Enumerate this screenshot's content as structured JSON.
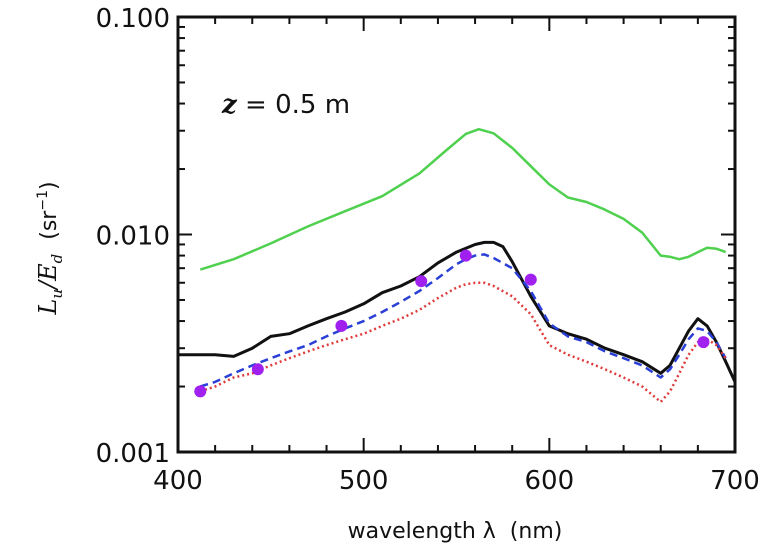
{
  "chart_data": {
    "type": "line",
    "title": "",
    "annotation": "z = 0.5 m",
    "annotation_parts": {
      "var": "z",
      "rest": " = 0.5 m"
    },
    "xlabel": "wavelength λ  (nm)",
    "ylabel": {
      "l": "L",
      "l_sub": "u",
      "slash": "/",
      "e": "E",
      "e_sub": "d",
      "units": "  (sr",
      "exp": "−1",
      "close": ")"
    },
    "xlim": [
      400,
      700
    ],
    "ylim": [
      0.001,
      0.1
    ],
    "yscale": "log",
    "grid": false,
    "xticks": [
      {
        "value": 400,
        "label": "400"
      },
      {
        "value": 500,
        "label": "500"
      },
      {
        "value": 600,
        "label": "600"
      },
      {
        "value": 700,
        "label": "700"
      }
    ],
    "yticks": [
      {
        "value": 0.001,
        "label": "0.001"
      },
      {
        "value": 0.01,
        "label": "0.010"
      },
      {
        "value": 0.1,
        "label": "0.100"
      }
    ],
    "series": [
      {
        "style": "solid",
        "color": "#4fd04f",
        "x": [
          412,
          430,
          450,
          470,
          490,
          510,
          530,
          545,
          555,
          562,
          570,
          580,
          590,
          600,
          610,
          620,
          630,
          640,
          650,
          660,
          665,
          670,
          675,
          680,
          685,
          690,
          695
        ],
        "y": [
          0.0069,
          0.0077,
          0.0091,
          0.0109,
          0.0128,
          0.015,
          0.0191,
          0.0246,
          0.029,
          0.0305,
          0.0292,
          0.025,
          0.0206,
          0.017,
          0.0148,
          0.0141,
          0.013,
          0.0118,
          0.0102,
          0.008,
          0.0079,
          0.0077,
          0.0079,
          0.0083,
          0.0087,
          0.0086,
          0.0083
        ]
      },
      {
        "style": "solid",
        "color": "#111111",
        "x": [
          400,
          410,
          420,
          430,
          440,
          450,
          460,
          470,
          480,
          490,
          500,
          510,
          520,
          530,
          540,
          550,
          560,
          565,
          570,
          575,
          580,
          590,
          600,
          610,
          620,
          630,
          640,
          650,
          660,
          665,
          670,
          675,
          680,
          685,
          690,
          695,
          700
        ],
        "y": [
          0.0028,
          0.0028,
          0.0028,
          0.00275,
          0.003,
          0.0034,
          0.0035,
          0.0038,
          0.0041,
          0.0044,
          0.0048,
          0.0054,
          0.0058,
          0.0064,
          0.0074,
          0.0083,
          0.009,
          0.0092,
          0.0092,
          0.0088,
          0.0075,
          0.0052,
          0.0038,
          0.0035,
          0.0033,
          0.003,
          0.0028,
          0.0026,
          0.0023,
          0.0025,
          0.003,
          0.0036,
          0.0041,
          0.0038,
          0.0032,
          0.0026,
          0.0021
        ]
      },
      {
        "style": "dashed",
        "color": "#2a3fd6",
        "x": [
          412,
          420,
          430,
          440,
          450,
          460,
          470,
          480,
          490,
          500,
          510,
          520,
          530,
          540,
          550,
          555,
          560,
          565,
          570,
          580,
          590,
          600,
          610,
          620,
          630,
          640,
          650,
          660,
          665,
          670,
          675,
          680,
          685,
          690,
          695
        ],
        "y": [
          0.002,
          0.0021,
          0.0023,
          0.0025,
          0.0027,
          0.0029,
          0.0031,
          0.0034,
          0.0037,
          0.004,
          0.0044,
          0.0049,
          0.0055,
          0.0063,
          0.0073,
          0.0077,
          0.008,
          0.0081,
          0.0078,
          0.007,
          0.0055,
          0.0039,
          0.0034,
          0.0032,
          0.0029,
          0.0027,
          0.0025,
          0.0022,
          0.0024,
          0.0028,
          0.0033,
          0.0037,
          0.0036,
          0.0032,
          0.0027
        ]
      },
      {
        "style": "dotted",
        "color": "#e03a3a",
        "x": [
          412,
          420,
          430,
          440,
          450,
          460,
          470,
          480,
          490,
          500,
          510,
          520,
          530,
          540,
          550,
          555,
          560,
          565,
          570,
          580,
          590,
          600,
          610,
          620,
          630,
          640,
          650,
          660,
          665,
          670,
          675,
          680,
          685,
          690,
          695
        ],
        "y": [
          0.0019,
          0.002,
          0.0022,
          0.0023,
          0.0025,
          0.0027,
          0.0029,
          0.0031,
          0.0033,
          0.0035,
          0.0038,
          0.0041,
          0.0045,
          0.0051,
          0.0057,
          0.0059,
          0.006,
          0.006,
          0.0058,
          0.0052,
          0.0043,
          0.0031,
          0.0028,
          0.0026,
          0.0024,
          0.0022,
          0.002,
          0.0017,
          0.0019,
          0.0023,
          0.0028,
          0.0032,
          0.0033,
          0.0031,
          0.0027
        ]
      },
      {
        "style": "markers",
        "color": "#a020f0",
        "x": [
          412,
          443,
          488,
          531,
          555,
          590,
          683
        ],
        "y": [
          0.0019,
          0.0024,
          0.0038,
          0.0061,
          0.008,
          0.0062,
          0.0032
        ]
      }
    ]
  }
}
